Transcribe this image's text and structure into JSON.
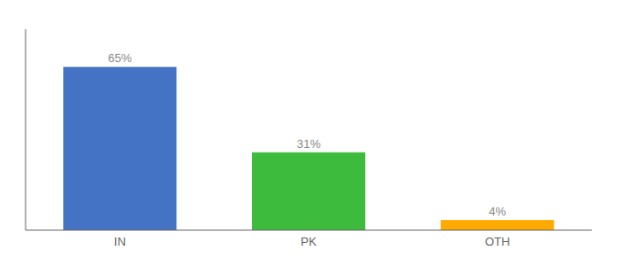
{
  "chart_data": {
    "type": "bar",
    "categories": [
      "IN",
      "PK",
      "OTH"
    ],
    "values": [
      65,
      31,
      4
    ],
    "value_labels": [
      "65%",
      "31%",
      "4%"
    ],
    "colors": [
      "#4472c4",
      "#3dbb3d",
      "#ffaa00"
    ],
    "ylim": [
      0,
      80
    ],
    "data_labels": true,
    "tick_labels": "x",
    "grid": false
  }
}
